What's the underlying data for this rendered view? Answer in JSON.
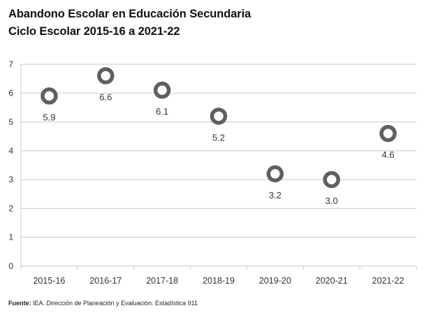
{
  "title_line1": "Abandono Escolar en Educación Secundaria",
  "title_line2": "Ciclo Escolar 2015-16 a 2021-22",
  "source": {
    "label": "Fuente:",
    "text": "IEA. Dirección de Planeación y Evaluación. Estadística 911"
  },
  "colors": {
    "marker": "#5f5f5f",
    "grid": "#c8c8c8",
    "axis_text": "#333333",
    "label_text": "#333333"
  },
  "chart_data": {
    "type": "scatter",
    "title": "Abandono Escolar en Educación Secundaria",
    "subtitle": "Ciclo Escolar 2015-16 a 2021-22",
    "categories": [
      "2015-16",
      "2016-17",
      "2017-18",
      "2018-19",
      "2019-20",
      "2020-21",
      "2021-22"
    ],
    "values": [
      5.9,
      6.6,
      6.1,
      5.2,
      3.2,
      3.0,
      4.6
    ],
    "data_labels": [
      "5.9",
      "6.6",
      "6.1",
      "5.2",
      "3.2",
      "3.0",
      "4.6"
    ],
    "ylim": [
      0,
      7
    ],
    "yticks": [
      0,
      1,
      2,
      3,
      4,
      5,
      6,
      7
    ],
    "xlabel": "",
    "ylabel": "",
    "grid": true,
    "marker": "open-circle"
  }
}
